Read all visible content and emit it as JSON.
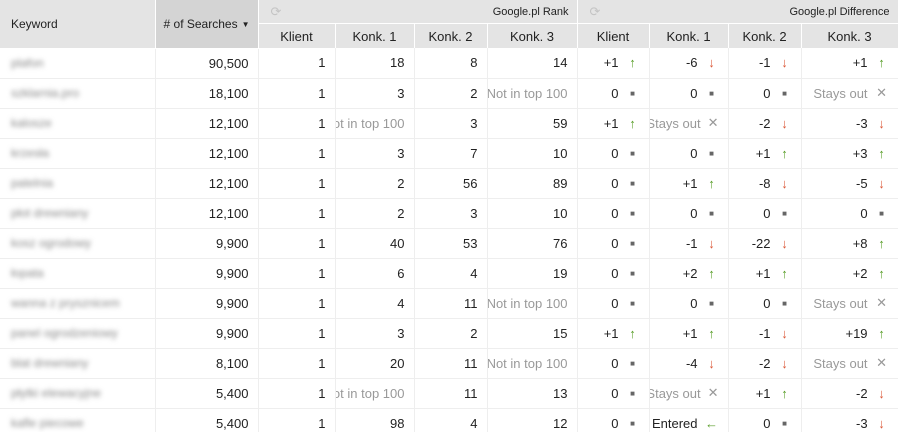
{
  "header": {
    "keyword": "Keyword",
    "searches": "# of Searches",
    "rank_group": "Google.pl Rank",
    "diff_group": "Google.pl Difference",
    "rank_cols": [
      "Klient",
      "Konk. 1",
      "Konk. 2",
      "Konk. 3"
    ],
    "diff_cols": [
      "Klient",
      "Konk. 1",
      "Konk. 2",
      "Konk. 3"
    ]
  },
  "colors": {
    "up": "#5a9e2a",
    "down": "#dc5a3a",
    "header_bg": "#e4e4e4",
    "sorted_header_bg": "#d4d4d4"
  },
  "rows": [
    {
      "keyword": "plafon",
      "searches": "90,500",
      "rank": [
        "1",
        "18",
        "8",
        "14"
      ],
      "diff": [
        {
          "v": "+1",
          "i": "up"
        },
        {
          "v": "-6",
          "i": "down"
        },
        {
          "v": "-1",
          "i": "down"
        },
        {
          "v": "+1",
          "i": "up"
        }
      ]
    },
    {
      "keyword": "szklarnia.pro",
      "searches": "18,100",
      "rank": [
        "1",
        "3",
        "2",
        "Not in top 100"
      ],
      "diff": [
        {
          "v": "0",
          "i": "square"
        },
        {
          "v": "0",
          "i": "square"
        },
        {
          "v": "0",
          "i": "square"
        },
        {
          "v": "Stays out",
          "i": "x"
        }
      ]
    },
    {
      "keyword": "kalosze",
      "searches": "12,100",
      "rank": [
        "1",
        "Not in top 100",
        "3",
        "59"
      ],
      "diff": [
        {
          "v": "+1",
          "i": "up"
        },
        {
          "v": "Stays out",
          "i": "x"
        },
        {
          "v": "-2",
          "i": "down"
        },
        {
          "v": "-3",
          "i": "down"
        }
      ]
    },
    {
      "keyword": "krzesła",
      "searches": "12,100",
      "rank": [
        "1",
        "3",
        "7",
        "10"
      ],
      "diff": [
        {
          "v": "0",
          "i": "square"
        },
        {
          "v": "0",
          "i": "square"
        },
        {
          "v": "+1",
          "i": "up"
        },
        {
          "v": "+3",
          "i": "up"
        }
      ]
    },
    {
      "keyword": "patelnia",
      "searches": "12,100",
      "rank": [
        "1",
        "2",
        "56",
        "89"
      ],
      "diff": [
        {
          "v": "0",
          "i": "square"
        },
        {
          "v": "+1",
          "i": "up"
        },
        {
          "v": "-8",
          "i": "down"
        },
        {
          "v": "-5",
          "i": "down"
        }
      ]
    },
    {
      "keyword": "płot drewniany",
      "searches": "12,100",
      "rank": [
        "1",
        "2",
        "3",
        "10"
      ],
      "diff": [
        {
          "v": "0",
          "i": "square"
        },
        {
          "v": "0",
          "i": "square"
        },
        {
          "v": "0",
          "i": "square"
        },
        {
          "v": "0",
          "i": "square"
        }
      ]
    },
    {
      "keyword": "kosz ogrodowy",
      "searches": "9,900",
      "rank": [
        "1",
        "40",
        "53",
        "76"
      ],
      "diff": [
        {
          "v": "0",
          "i": "square"
        },
        {
          "v": "-1",
          "i": "down"
        },
        {
          "v": "-22",
          "i": "down"
        },
        {
          "v": "+8",
          "i": "up"
        }
      ]
    },
    {
      "keyword": "łopata",
      "searches": "9,900",
      "rank": [
        "1",
        "6",
        "4",
        "19"
      ],
      "diff": [
        {
          "v": "0",
          "i": "square"
        },
        {
          "v": "+2",
          "i": "up"
        },
        {
          "v": "+1",
          "i": "up"
        },
        {
          "v": "+2",
          "i": "up"
        }
      ]
    },
    {
      "keyword": "wanna z prysznicem",
      "searches": "9,900",
      "rank": [
        "1",
        "4",
        "11",
        "Not in top 100"
      ],
      "diff": [
        {
          "v": "0",
          "i": "square"
        },
        {
          "v": "0",
          "i": "square"
        },
        {
          "v": "0",
          "i": "square"
        },
        {
          "v": "Stays out",
          "i": "x"
        }
      ]
    },
    {
      "keyword": "panel ogrodzeniowy",
      "searches": "9,900",
      "rank": [
        "1",
        "3",
        "2",
        "15"
      ],
      "diff": [
        {
          "v": "+1",
          "i": "up"
        },
        {
          "v": "+1",
          "i": "up"
        },
        {
          "v": "-1",
          "i": "down"
        },
        {
          "v": "+19",
          "i": "up"
        }
      ]
    },
    {
      "keyword": "blat drewniany",
      "searches": "8,100",
      "rank": [
        "1",
        "20",
        "11",
        "Not in top 100"
      ],
      "diff": [
        {
          "v": "0",
          "i": "square"
        },
        {
          "v": "-4",
          "i": "down"
        },
        {
          "v": "-2",
          "i": "down"
        },
        {
          "v": "Stays out",
          "i": "x"
        }
      ]
    },
    {
      "keyword": "płytki elewacyjne",
      "searches": "5,400",
      "rank": [
        "1",
        "Not in top 100",
        "11",
        "13"
      ],
      "diff": [
        {
          "v": "0",
          "i": "square"
        },
        {
          "v": "Stays out",
          "i": "x"
        },
        {
          "v": "+1",
          "i": "up"
        },
        {
          "v": "-2",
          "i": "down"
        }
      ]
    },
    {
      "keyword": "kafle piecowe",
      "searches": "5,400",
      "rank": [
        "1",
        "98",
        "4",
        "12"
      ],
      "diff": [
        {
          "v": "0",
          "i": "square"
        },
        {
          "v": "Entered",
          "i": "left"
        },
        {
          "v": "0",
          "i": "square"
        },
        {
          "v": "-3",
          "i": "down"
        }
      ]
    }
  ]
}
